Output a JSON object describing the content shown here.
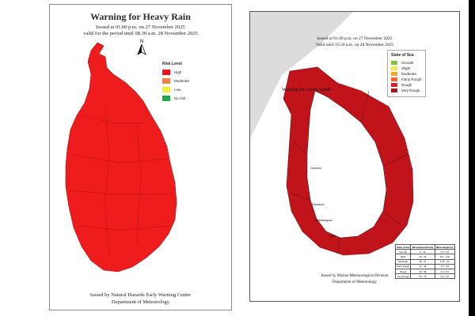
{
  "left_map": {
    "title": "Warning  for Heavy Rain",
    "issued": "Issued at 01.00 p.m. on 27 November 2025",
    "valid": "valid for the period until 08.30 a.m. 28 November 2025",
    "north_label": "N",
    "legend": {
      "title": "Risk Level",
      "items": [
        {
          "label": "High",
          "color": "#e8141b"
        },
        {
          "label": "Moderate",
          "color": "#f4834a"
        },
        {
          "label": "Low",
          "color": "#f5ef3a"
        },
        {
          "label": "No risk",
          "color": "#21a64c"
        }
      ]
    },
    "footer_line1": "Issued by Natural Hazards Early Warning Centre",
    "footer_line2": "Department of Meteorology",
    "fill_color": "#ee1c1c"
  },
  "right_map": {
    "title": "Warning for strong winds",
    "issued": "Issued at 01.00 p.m. on 27 November 2025",
    "valid": "Valid until 10.30 a.m. on 28 November 2025",
    "legend": {
      "title": "State of Sea",
      "items": [
        {
          "label": "Smooth",
          "color": "#7fc241"
        },
        {
          "label": "Slight",
          "color": "#f6e94c"
        },
        {
          "label": "Moderate",
          "color": "#f7a52c"
        },
        {
          "label": "Fairly Rough",
          "color": "#ee6a2b"
        },
        {
          "label": "Rough",
          "color": "#d0262a"
        },
        {
          "label": "Very Rough",
          "color": "#a5171c"
        }
      ]
    },
    "footer_line1": "Issued by Marine Meteorological Division",
    "footer_line2": "Department of Meteorology",
    "places": [
      "Colombo",
      "Panadura",
      "Galle",
      "Ambalangoda"
    ],
    "table": {
      "headers": [
        "State of Sea",
        "Wind Speed (Kmph)",
        "Wave Height (m)"
      ],
      "rows": [
        [
          "Smooth",
          "0 - 19",
          "0.5 - 0.5"
        ],
        [
          "Slight",
          "19 - 28",
          "0.5 - 1.25"
        ],
        [
          "Moderate",
          "28 - 37",
          "1.25 - 2.5"
        ],
        [
          "Fairly Rough",
          "37 - 46",
          "2.5 - 4.0"
        ],
        [
          "Rough",
          "46 - 55",
          "4.0 - 6.0"
        ],
        [
          "Very Rough",
          "55 - 74",
          "6.0 - 9.0"
        ]
      ]
    },
    "fill_color": "#c0141a",
    "sea_color": "#dcdcdc"
  }
}
